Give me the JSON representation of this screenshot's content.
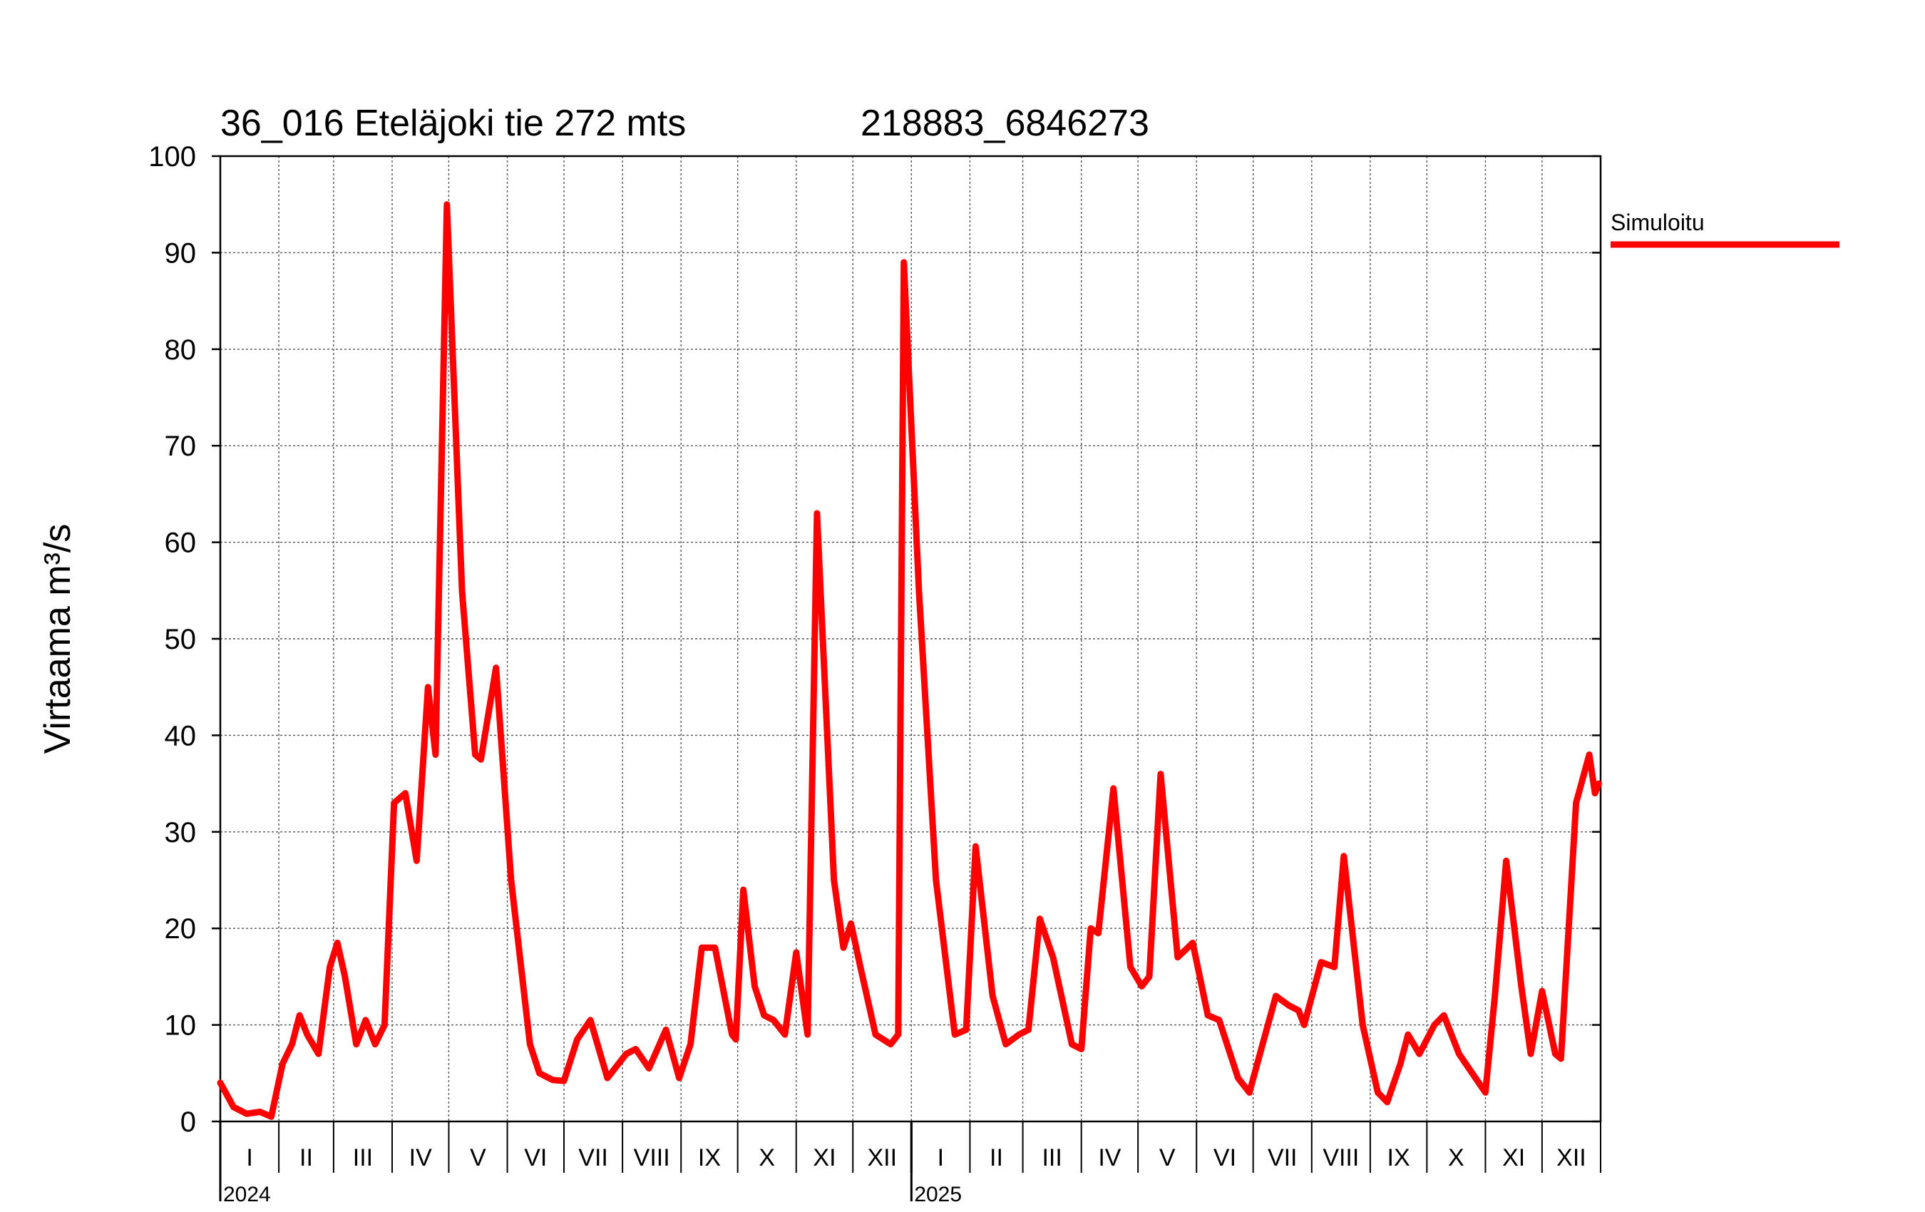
{
  "chart_data": {
    "type": "line",
    "title": "36_016 Eteläjoki tie 272 mts",
    "subtitle": "218883_6846273",
    "ylabel": "Virtaama m³/s",
    "xlabel": "",
    "ylim": [
      0,
      100
    ],
    "yticks": [
      0,
      10,
      20,
      30,
      40,
      50,
      60,
      70,
      80,
      90,
      100
    ],
    "grid": true,
    "legend_position": "right",
    "x_range": [
      "2024-01-01",
      "2025-12-31"
    ],
    "years": [
      {
        "label": "2024",
        "start": "2024-01-01"
      },
      {
        "label": "2025",
        "start": "2025-01-01"
      }
    ],
    "months": [
      {
        "label": "I",
        "start": "2024-01-01"
      },
      {
        "label": "II",
        "start": "2024-02-01"
      },
      {
        "label": "III",
        "start": "2024-03-01"
      },
      {
        "label": "IV",
        "start": "2024-04-01"
      },
      {
        "label": "V",
        "start": "2024-05-01"
      },
      {
        "label": "VI",
        "start": "2024-06-01"
      },
      {
        "label": "VII",
        "start": "2024-07-01"
      },
      {
        "label": "VIII",
        "start": "2024-08-01"
      },
      {
        "label": "IX",
        "start": "2024-09-01"
      },
      {
        "label": "X",
        "start": "2024-10-01"
      },
      {
        "label": "XI",
        "start": "2024-11-01"
      },
      {
        "label": "XII",
        "start": "2024-12-01"
      },
      {
        "label": "I",
        "start": "2025-01-01"
      },
      {
        "label": "II",
        "start": "2025-02-01"
      },
      {
        "label": "III",
        "start": "2025-03-01"
      },
      {
        "label": "IV",
        "start": "2025-04-01"
      },
      {
        "label": "V",
        "start": "2025-05-01"
      },
      {
        "label": "VI",
        "start": "2025-06-01"
      },
      {
        "label": "VII",
        "start": "2025-07-01"
      },
      {
        "label": "VIII",
        "start": "2025-08-01"
      },
      {
        "label": "IX",
        "start": "2025-09-01"
      },
      {
        "label": "X",
        "start": "2025-10-01"
      },
      {
        "label": "XI",
        "start": "2025-11-01"
      },
      {
        "label": "XII",
        "start": "2025-12-01"
      }
    ],
    "series": [
      {
        "name": "Simuloitu",
        "color": "#ff0000",
        "points": [
          [
            "2024-01-01",
            4
          ],
          [
            "2024-01-08",
            1.5
          ],
          [
            "2024-01-15",
            0.8
          ],
          [
            "2024-01-22",
            1
          ],
          [
            "2024-01-28",
            0.5
          ],
          [
            "2024-02-03",
            6
          ],
          [
            "2024-02-08",
            8
          ],
          [
            "2024-02-12",
            11
          ],
          [
            "2024-02-16",
            9
          ],
          [
            "2024-02-22",
            7
          ],
          [
            "2024-02-28",
            16
          ],
          [
            "2024-03-03",
            18.5
          ],
          [
            "2024-03-07",
            15
          ],
          [
            "2024-03-13",
            8
          ],
          [
            "2024-03-18",
            10.5
          ],
          [
            "2024-03-23",
            8
          ],
          [
            "2024-03-28",
            10
          ],
          [
            "2024-04-02",
            33
          ],
          [
            "2024-04-08",
            34
          ],
          [
            "2024-04-14",
            27
          ],
          [
            "2024-04-20",
            45
          ],
          [
            "2024-04-24",
            38
          ],
          [
            "2024-04-30",
            95
          ],
          [
            "2024-05-08",
            55
          ],
          [
            "2024-05-15",
            38
          ],
          [
            "2024-05-18",
            37.5
          ],
          [
            "2024-05-26",
            47
          ],
          [
            "2024-06-03",
            25
          ],
          [
            "2024-06-13",
            8
          ],
          [
            "2024-06-18",
            5
          ],
          [
            "2024-06-25",
            4.3
          ],
          [
            "2024-07-01",
            4.2
          ],
          [
            "2024-07-08",
            8.5
          ],
          [
            "2024-07-15",
            10.5
          ],
          [
            "2024-07-24",
            4.5
          ],
          [
            "2024-08-03",
            7
          ],
          [
            "2024-08-08",
            7.5
          ],
          [
            "2024-08-15",
            5.5
          ],
          [
            "2024-08-24",
            9.5
          ],
          [
            "2024-08-31",
            4.5
          ],
          [
            "2024-09-06",
            8
          ],
          [
            "2024-09-12",
            18
          ],
          [
            "2024-09-19",
            18
          ],
          [
            "2024-09-28",
            9
          ],
          [
            "2024-09-30",
            8.5
          ],
          [
            "2024-10-04",
            24
          ],
          [
            "2024-10-10",
            14
          ],
          [
            "2024-10-15",
            11
          ],
          [
            "2024-10-20",
            10.5
          ],
          [
            "2024-10-26",
            9
          ],
          [
            "2024-11-01",
            17.5
          ],
          [
            "2024-11-07",
            9
          ],
          [
            "2024-11-12",
            63
          ],
          [
            "2024-11-21",
            25
          ],
          [
            "2024-11-26",
            18
          ],
          [
            "2024-11-30",
            20.5
          ],
          [
            "2024-12-05",
            16
          ],
          [
            "2024-12-13",
            9
          ],
          [
            "2024-12-21",
            8
          ],
          [
            "2024-12-25",
            9
          ],
          [
            "2024-12-28",
            89
          ],
          [
            "2025-01-05",
            55
          ],
          [
            "2025-01-14",
            25
          ],
          [
            "2025-01-24",
            9
          ],
          [
            "2025-01-30",
            9.5
          ],
          [
            "2025-02-04",
            28.5
          ],
          [
            "2025-02-13",
            13
          ],
          [
            "2025-02-20",
            8
          ],
          [
            "2025-02-27",
            9
          ],
          [
            "2025-03-04",
            9.5
          ],
          [
            "2025-03-10",
            21
          ],
          [
            "2025-03-17",
            17
          ],
          [
            "2025-03-27",
            8
          ],
          [
            "2025-04-01",
            7.5
          ],
          [
            "2025-04-06",
            20
          ],
          [
            "2025-04-10",
            19.5
          ],
          [
            "2025-04-18",
            34.5
          ],
          [
            "2025-04-27",
            16
          ],
          [
            "2025-05-03",
            14
          ],
          [
            "2025-05-07",
            15
          ],
          [
            "2025-05-13",
            36
          ],
          [
            "2025-05-22",
            17
          ],
          [
            "2025-05-30",
            18.5
          ],
          [
            "2025-06-07",
            11
          ],
          [
            "2025-06-13",
            10.5
          ],
          [
            "2025-06-23",
            4.5
          ],
          [
            "2025-06-29",
            3
          ],
          [
            "2025-07-06",
            8
          ],
          [
            "2025-07-13",
            13
          ],
          [
            "2025-07-20",
            12
          ],
          [
            "2025-07-25",
            11.5
          ],
          [
            "2025-07-28",
            10
          ],
          [
            "2025-08-06",
            16.5
          ],
          [
            "2025-08-13",
            16
          ],
          [
            "2025-08-18",
            27.5
          ],
          [
            "2025-08-28",
            10
          ],
          [
            "2025-09-05",
            3
          ],
          [
            "2025-09-10",
            2
          ],
          [
            "2025-09-17",
            6
          ],
          [
            "2025-09-21",
            9
          ],
          [
            "2025-09-27",
            7
          ],
          [
            "2025-10-05",
            10
          ],
          [
            "2025-10-10",
            11
          ],
          [
            "2025-10-18",
            7
          ],
          [
            "2025-10-25",
            5
          ],
          [
            "2025-11-01",
            3
          ],
          [
            "2025-11-06",
            13
          ],
          [
            "2025-11-12",
            27
          ],
          [
            "2025-11-20",
            14
          ],
          [
            "2025-11-25",
            7
          ],
          [
            "2025-12-01",
            13.5
          ],
          [
            "2025-12-08",
            7
          ],
          [
            "2025-12-11",
            6.5
          ],
          [
            "2025-12-19",
            33
          ],
          [
            "2025-12-26",
            38
          ],
          [
            "2025-12-29",
            34
          ],
          [
            "2025-12-31",
            35
          ]
        ]
      }
    ]
  }
}
